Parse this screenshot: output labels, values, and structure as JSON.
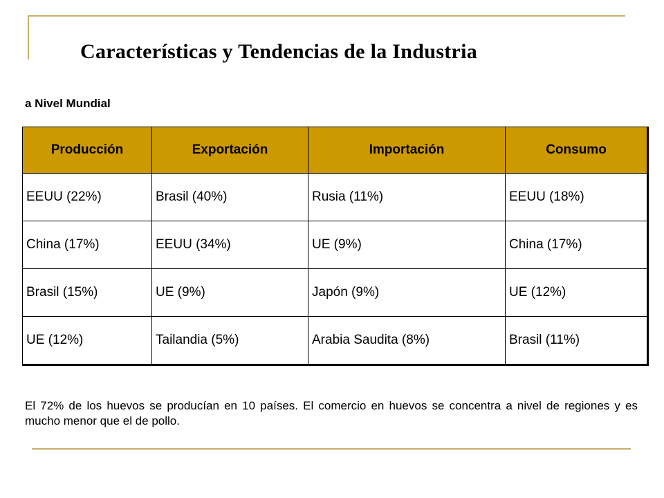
{
  "slide": {
    "title": "Características y Tendencias de la Industria",
    "subtitle": "a Nivel Mundial",
    "table": {
      "headers": [
        "Producción",
        "Exportación",
        "Importación",
        "Consumo"
      ],
      "rows": [
        [
          "EEUU (22%)",
          "Brasil (40%)",
          "Rusia (11%)",
          "EEUU (18%)"
        ],
        [
          "China (17%)",
          "EEUU (34%)",
          "UE (9%)",
          "China (17%)"
        ],
        [
          "Brasil (15%)",
          "UE (9%)",
          "Japón (9%)",
          "UE (12%)"
        ],
        [
          "UE (12%)",
          "Tailandia (5%)",
          "Arabia Saudita (8%)",
          "Brasil (11%)"
        ]
      ],
      "header_color": "#cc9900"
    },
    "note": "El 72% de los huevos se producían en 10 países. El comercio en huevos se concentra a nivel de regiones y es mucho menor que el de pollo.",
    "accent_line_color": "#c8ad6a"
  }
}
